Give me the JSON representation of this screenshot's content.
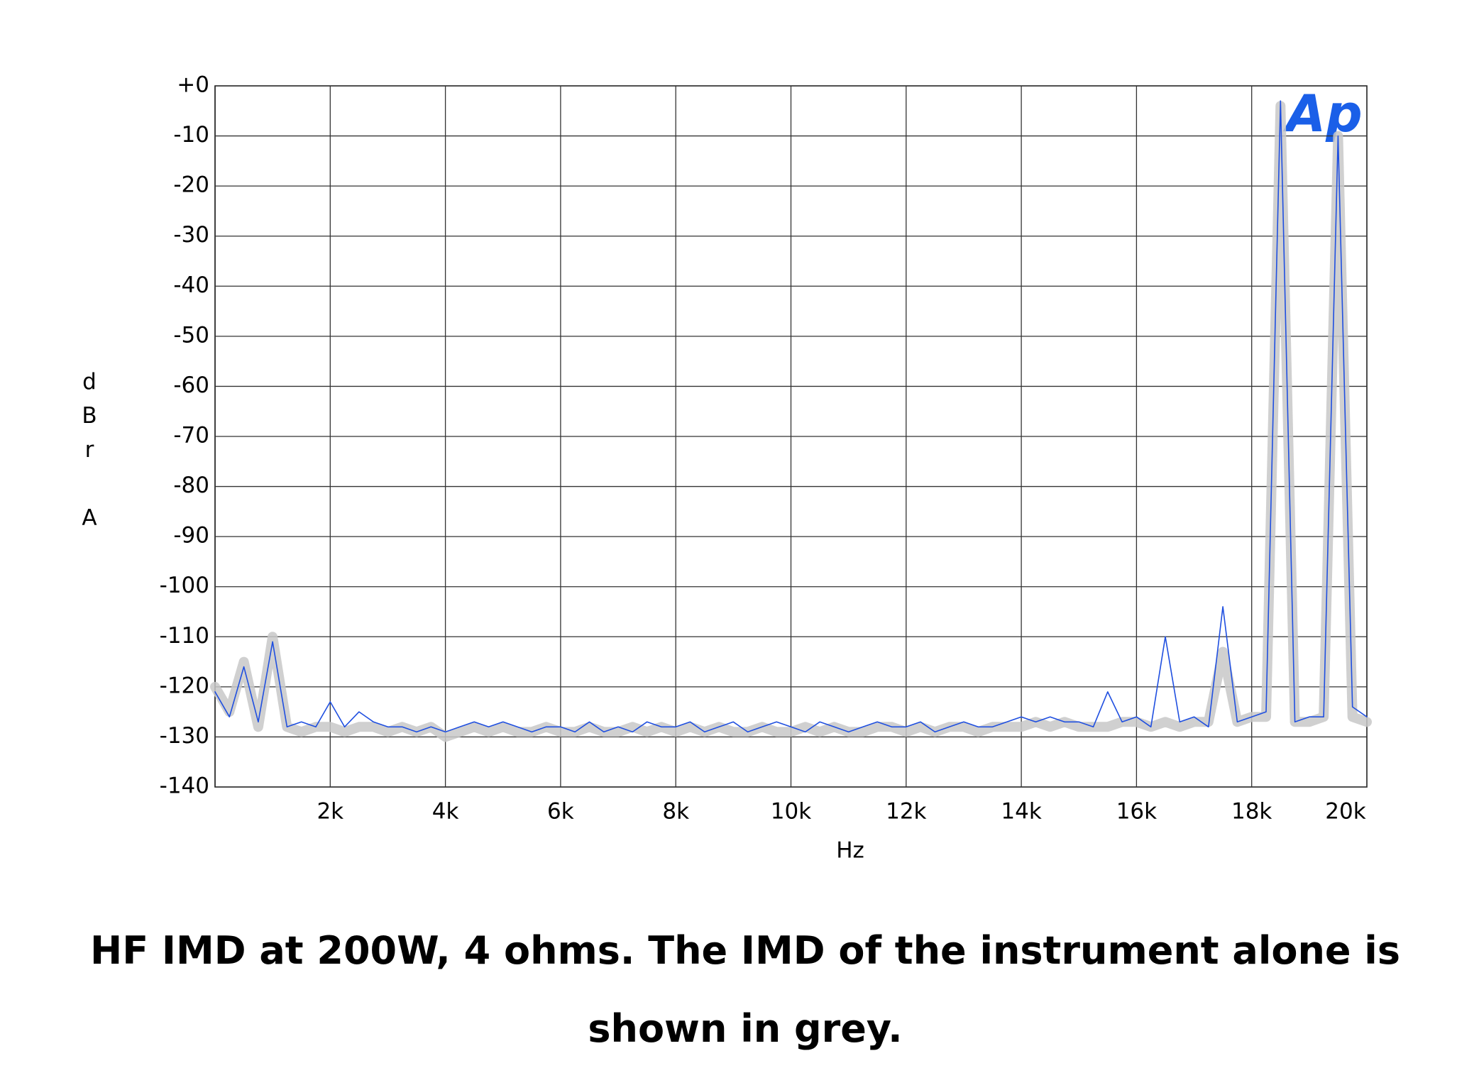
{
  "chart_data": {
    "type": "line",
    "logo": "Ap",
    "xlabel": "Hz",
    "ylabel": "dBr A",
    "caption": "HF IMD at 200W, 4 ohms. The IMD of the instrument alone is shown in grey.",
    "xlim": [
      0,
      20000
    ],
    "ylim": [
      -140,
      0
    ],
    "xticks": [
      {
        "value": 2000,
        "label": "2k"
      },
      {
        "value": 4000,
        "label": "4k"
      },
      {
        "value": 6000,
        "label": "6k"
      },
      {
        "value": 8000,
        "label": "8k"
      },
      {
        "value": 10000,
        "label": "10k"
      },
      {
        "value": 12000,
        "label": "12k"
      },
      {
        "value": 14000,
        "label": "14k"
      },
      {
        "value": 16000,
        "label": "16k"
      },
      {
        "value": 18000,
        "label": "18k"
      },
      {
        "value": 20000,
        "label": "20k"
      }
    ],
    "yticks": [
      {
        "value": 0,
        "label": "+0"
      },
      -10,
      -20,
      -30,
      -40,
      -50,
      -60,
      -70,
      -80,
      -90,
      -100,
      -110,
      -120,
      -130,
      -140
    ],
    "grid": true,
    "x": [
      0,
      250,
      500,
      750,
      1000,
      1250,
      1500,
      1750,
      2000,
      2250,
      2500,
      2750,
      3000,
      3250,
      3500,
      3750,
      4000,
      4250,
      4500,
      4750,
      5000,
      5250,
      5500,
      5750,
      6000,
      6250,
      6500,
      6750,
      7000,
      7250,
      7500,
      7750,
      8000,
      8250,
      8500,
      8750,
      9000,
      9250,
      9500,
      9750,
      10000,
      10250,
      10500,
      10750,
      11000,
      11250,
      11500,
      11750,
      12000,
      12250,
      12500,
      12750,
      13000,
      13250,
      13500,
      13750,
      14000,
      14250,
      14500,
      14750,
      15000,
      15250,
      15500,
      15750,
      16000,
      16250,
      16500,
      16750,
      17000,
      17250,
      17500,
      17750,
      18000,
      18250,
      18500,
      18750,
      19000,
      19250,
      19500,
      19750,
      20000
    ],
    "series": [
      {
        "color": "#c8c8c8",
        "values": [
          -120,
          -125,
          -115,
          -128,
          -110,
          -128,
          -129,
          -128,
          -128,
          -129,
          -128,
          -128,
          -129,
          -128,
          -129,
          -128,
          -130,
          -129,
          -128,
          -129,
          -128,
          -129,
          -129,
          -128,
          -129,
          -129,
          -128,
          -129,
          -129,
          -128,
          -129,
          -128,
          -129,
          -128,
          -129,
          -128,
          -129,
          -129,
          -128,
          -129,
          -129,
          -128,
          -129,
          -128,
          -129,
          -129,
          -128,
          -128,
          -129,
          -128,
          -129,
          -128,
          -128,
          -129,
          -128,
          -128,
          -128,
          -127,
          -128,
          -127,
          -128,
          -128,
          -128,
          -127,
          -127,
          -128,
          -127,
          -128,
          -127,
          -127,
          -113,
          -127,
          -126,
          -126,
          -4,
          -127,
          -127,
          -126,
          -10,
          -126,
          -127
        ]
      },
      {
        "color": "#1f4fe0",
        "values": [
          -121,
          -126,
          -116,
          -127,
          -111,
          -128,
          -127,
          -128,
          -123,
          -128,
          -125,
          -127,
          -128,
          -128,
          -129,
          -128,
          -129,
          -128,
          -127,
          -128,
          -127,
          -128,
          -129,
          -128,
          -128,
          -129,
          -127,
          -129,
          -128,
          -129,
          -127,
          -128,
          -128,
          -127,
          -129,
          -128,
          -127,
          -129,
          -128,
          -127,
          -128,
          -129,
          -127,
          -128,
          -129,
          -128,
          -127,
          -128,
          -128,
          -127,
          -129,
          -128,
          -127,
          -128,
          -128,
          -127,
          -126,
          -127,
          -126,
          -127,
          -127,
          -128,
          -121,
          -127,
          -126,
          -128,
          -110,
          -127,
          -126,
          -128,
          -104,
          -127,
          -126,
          -125,
          -3,
          -127,
          -126,
          -126,
          -10,
          -124,
          -126
        ]
      }
    ]
  }
}
